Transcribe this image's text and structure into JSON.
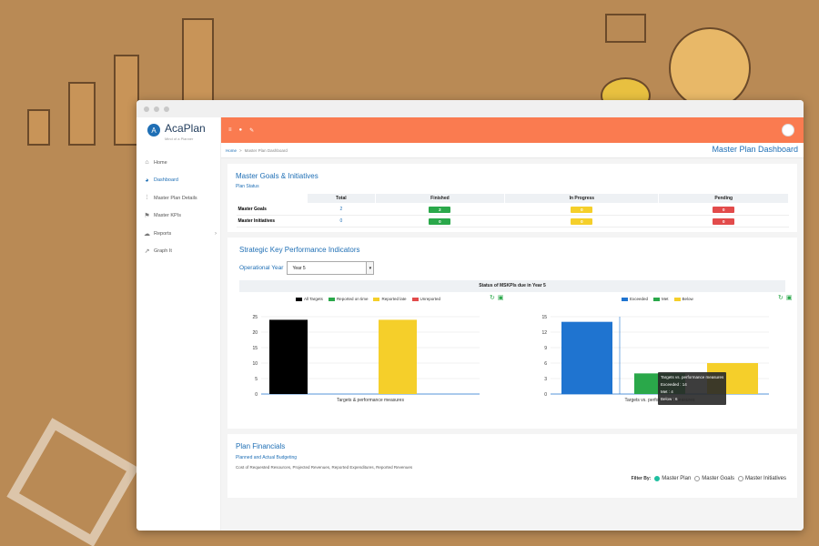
{
  "app": {
    "brand": "AcaPlan",
    "tagline": "Mind of a Planner"
  },
  "sidebar": {
    "items": [
      {
        "label": "Home",
        "icon": "home-icon"
      },
      {
        "label": "Dashboard",
        "icon": "dashboard-icon",
        "active": true
      },
      {
        "label": "Master Plan Details",
        "icon": "details-icon"
      },
      {
        "label": "Master KPIs",
        "icon": "flag-icon"
      },
      {
        "label": "Reports",
        "icon": "cloud-icon"
      },
      {
        "label": "Graph It",
        "icon": "chart-icon"
      }
    ]
  },
  "breadcrumb": {
    "home": "Home",
    "separator": ">",
    "current": "Master Plan Dashboard"
  },
  "page_title": "Master Plan Dashboard",
  "goals": {
    "title": "Master Goals & Initiatives",
    "subtitle": "Plan Status",
    "columns": [
      "Total",
      "Finished",
      "In Progress",
      "Pending"
    ],
    "rows": [
      {
        "label": "Master Goals",
        "total": "2",
        "finished": "2",
        "in_progress": "0",
        "pending": "0"
      },
      {
        "label": "Master Initiatives",
        "total": "0",
        "finished": "0",
        "in_progress": "0",
        "pending": "0"
      }
    ]
  },
  "kpi": {
    "title": "Strategic Key Performance Indicators",
    "op_year_label": "Operational Year",
    "op_year_value": "Year 5",
    "status_title": "Status of MSKPIs due in Year 5",
    "tooltip": {
      "title": "Targets vs. performance measures",
      "lines": [
        "Exceeded : 14",
        "Met : 4",
        "Below : 6"
      ]
    }
  },
  "chart_data": [
    {
      "type": "bar",
      "categories": [
        "All Targets",
        "Reported on time",
        "Reported late",
        "Unreported"
      ],
      "values": [
        24,
        0,
        24,
        0
      ],
      "colors": [
        "#000000",
        "#2aa84a",
        "#f5cf2a",
        "#e24b4b"
      ],
      "xlabel": "Targets & performance measures",
      "ylim": [
        0,
        25
      ],
      "yticks": [
        0,
        5,
        10,
        15,
        20,
        25
      ]
    },
    {
      "type": "bar",
      "categories": [
        "Exceeded",
        "Met",
        "Below"
      ],
      "values": [
        14,
        4,
        6
      ],
      "colors": [
        "#1f74d0",
        "#2aa84a",
        "#f5cf2a"
      ],
      "xlabel": "Targets vs. performance measures",
      "ylim": [
        0,
        15
      ],
      "yticks": [
        0,
        3,
        6,
        9,
        12,
        15
      ]
    }
  ],
  "financials": {
    "title": "Plan Financials",
    "subtitle": "Planned and Actual Budgeting",
    "description": "Cost of Requested Resources, Projected Revenues, Reported Expenditures, Reported Revenues",
    "filter_label": "Filter By:",
    "filter_options": [
      "Master Plan",
      "Master Goals",
      "Master Initiatives"
    ]
  }
}
